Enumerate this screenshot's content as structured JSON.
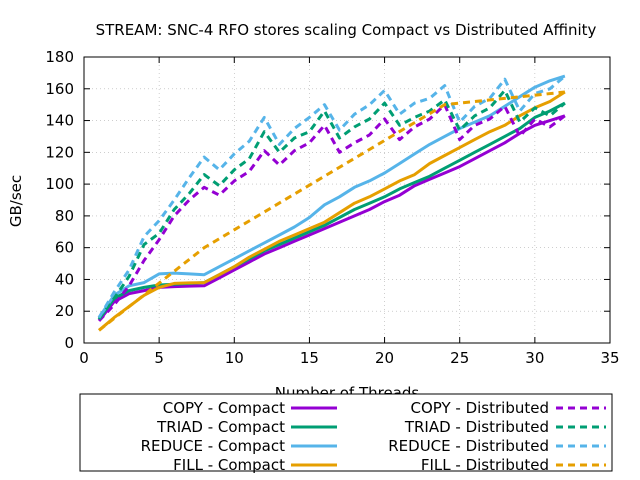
{
  "chart_data": {
    "type": "line",
    "title": "STREAM: SNC-4 RFO stores scaling Compact vs Distributed Affinity",
    "xlabel": "Number of Threads",
    "ylabel": "GB/sec",
    "xlim": [
      0,
      35
    ],
    "ylim": [
      0,
      180
    ],
    "xticks": [
      0,
      5,
      10,
      15,
      20,
      25,
      30,
      35
    ],
    "yticks": [
      0,
      20,
      40,
      60,
      80,
      100,
      120,
      140,
      160,
      180
    ],
    "grid": true,
    "legend_position": "bottom",
    "series": [
      {
        "name": "COPY - Compact",
        "color": "#9400d3",
        "dash": "solid",
        "x": [
          1,
          2,
          3,
          4,
          5,
          6,
          7,
          8,
          9,
          10,
          11,
          12,
          13,
          14,
          15,
          16,
          17,
          18,
          19,
          20,
          21,
          22,
          23,
          24,
          25,
          26,
          27,
          28,
          29,
          30,
          31,
          32
        ],
        "y": [
          14,
          26,
          31,
          33,
          35,
          35.5,
          35.8,
          36,
          41,
          46,
          51,
          56,
          60,
          64,
          68,
          72,
          76,
          80,
          84,
          89,
          93,
          99,
          103,
          107,
          111,
          116,
          121,
          126,
          132,
          137,
          140,
          143
        ]
      },
      {
        "name": "TRIAD - Compact",
        "color": "#009e73",
        "dash": "solid",
        "x": [
          1,
          2,
          3,
          4,
          5,
          6,
          7,
          8,
          9,
          10,
          11,
          12,
          13,
          14,
          15,
          16,
          17,
          18,
          19,
          20,
          21,
          22,
          23,
          24,
          25,
          26,
          27,
          28,
          29,
          30,
          31,
          32
        ],
        "y": [
          15,
          28,
          33,
          35,
          36.5,
          37,
          37.5,
          38,
          43,
          48,
          53,
          58,
          62,
          66,
          70,
          74,
          79,
          84,
          88,
          92,
          97,
          101,
          105,
          110,
          115,
          120,
          125,
          130,
          135,
          142,
          146,
          151
        ]
      },
      {
        "name": "REDUCE - Compact",
        "color": "#56b4e9",
        "dash": "solid",
        "x": [
          1,
          2,
          3,
          4,
          5,
          6,
          7,
          8,
          9,
          10,
          11,
          12,
          13,
          14,
          15,
          16,
          17,
          18,
          19,
          20,
          21,
          22,
          23,
          24,
          25,
          26,
          27,
          28,
          29,
          30,
          31,
          32
        ],
        "y": [
          16,
          30,
          36,
          38,
          43.5,
          44,
          43.5,
          43,
          48,
          53,
          58,
          63,
          68,
          73,
          79,
          87,
          92,
          98,
          102,
          107,
          113,
          119,
          125,
          130,
          135,
          139,
          143,
          149,
          155,
          161,
          165,
          168
        ]
      },
      {
        "name": "FILL - Compact",
        "color": "#e69f00",
        "dash": "solid",
        "x": [
          1,
          2,
          3,
          4,
          5,
          6,
          7,
          8,
          9,
          10,
          11,
          12,
          13,
          14,
          15,
          16,
          17,
          18,
          19,
          20,
          21,
          22,
          23,
          24,
          25,
          26,
          27,
          28,
          29,
          30,
          31,
          32
        ],
        "y": [
          8,
          16,
          23,
          30,
          35,
          37.5,
          37.8,
          38,
          43,
          48,
          54,
          59,
          64,
          68,
          72,
          76,
          82,
          88,
          92,
          97,
          102,
          106,
          113,
          118,
          123,
          128,
          133,
          137,
          143,
          148,
          152,
          158
        ]
      },
      {
        "name": "COPY - Distributed",
        "color": "#9400d3",
        "dash": "dashed",
        "x": [
          1,
          2,
          3,
          4,
          5,
          6,
          7,
          8,
          9,
          10,
          11,
          12,
          13,
          14,
          15,
          16,
          17,
          18,
          19,
          20,
          21,
          22,
          23,
          24,
          25,
          26,
          27,
          28,
          29,
          30,
          31,
          32
        ],
        "y": [
          14,
          24,
          36,
          52,
          65,
          80,
          90,
          98,
          93,
          102,
          108,
          121,
          112,
          121,
          126,
          137,
          120,
          126,
          131,
          141,
          128,
          136,
          141,
          150,
          128,
          137,
          141,
          149,
          130,
          141,
          136,
          143
        ]
      },
      {
        "name": "TRIAD - Distributed",
        "color": "#009e73",
        "dash": "dashed",
        "x": [
          1,
          2,
          3,
          4,
          5,
          6,
          7,
          8,
          9,
          10,
          11,
          12,
          13,
          14,
          15,
          16,
          17,
          18,
          19,
          20,
          21,
          22,
          23,
          24,
          25,
          26,
          27,
          28,
          29,
          30,
          31,
          32
        ],
        "y": [
          15,
          28,
          42,
          62,
          69,
          84,
          94,
          106,
          99,
          109,
          116,
          133,
          120,
          129,
          133,
          146,
          129,
          136,
          141,
          151,
          137,
          142,
          146,
          153,
          134,
          143,
          148,
          159,
          139,
          148,
          143,
          151
        ]
      },
      {
        "name": "REDUCE - Distributed",
        "color": "#56b4e9",
        "dash": "dashed",
        "x": [
          1,
          2,
          3,
          4,
          5,
          6,
          7,
          8,
          9,
          10,
          11,
          12,
          13,
          14,
          15,
          16,
          17,
          18,
          19,
          20,
          21,
          22,
          23,
          24,
          25,
          26,
          27,
          28,
          29,
          30,
          31,
          32
        ],
        "y": [
          16,
          32,
          46,
          67,
          77,
          90,
          104,
          117,
          109,
          119,
          127,
          142,
          125,
          135,
          142,
          150,
          134,
          144,
          150,
          159,
          144,
          151,
          154,
          162,
          139,
          149,
          154,
          166,
          146,
          157,
          160,
          168
        ]
      },
      {
        "name": "FILL - Distributed",
        "color": "#e69f00",
        "dash": "dashed",
        "x": [
          1,
          8,
          16,
          24,
          32
        ],
        "y": [
          8,
          60,
          105,
          150,
          158
        ]
      }
    ]
  }
}
